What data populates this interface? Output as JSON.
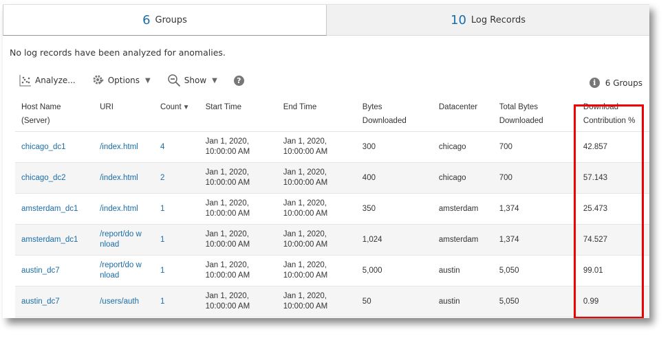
{
  "tabs": [
    {
      "count": "6",
      "label": "Groups",
      "active": true
    },
    {
      "count": "10",
      "label": "Log Records",
      "active": false
    }
  ],
  "message": "No log records have been analyzed for anomalies.",
  "toolbar": {
    "analyze": "Analyze...",
    "options": "Options",
    "show": "Show",
    "help_icon": "question-circle-icon"
  },
  "summary": "6 Groups",
  "columns": [
    [
      "Host Name",
      "(Server)"
    ],
    [
      "URI",
      ""
    ],
    [
      "Count",
      ""
    ],
    [
      "Start Time",
      ""
    ],
    [
      "End Time",
      ""
    ],
    [
      "Bytes",
      "Downloaded"
    ],
    [
      "Datacenter",
      ""
    ],
    [
      "Total Bytes",
      "Downloaded"
    ],
    [
      "Download",
      "Contribution %"
    ]
  ],
  "rows": [
    {
      "host": "chicago_dc1",
      "uri": "/index.html",
      "count": "4",
      "start": [
        "Jan 1, 2020,",
        "10:00:00 AM"
      ],
      "end": [
        "Jan 1, 2020,",
        "10:00:00 AM"
      ],
      "bytes": "300",
      "dc": "chicago",
      "total": "700",
      "pct": "42.857"
    },
    {
      "host": "chicago_dc2",
      "uri": "/index.html",
      "count": "2",
      "start": [
        "Jan 1, 2020,",
        "10:00:00 AM"
      ],
      "end": [
        "Jan 1, 2020,",
        "10:00:00 AM"
      ],
      "bytes": "400",
      "dc": "chicago",
      "total": "700",
      "pct": "57.143"
    },
    {
      "host": "amsterdam_dc1",
      "uri": "/index.html",
      "count": "1",
      "start": [
        "Jan 1, 2020,",
        "10:00:00 AM"
      ],
      "end": [
        "Jan 1, 2020,",
        "10:00:00 AM"
      ],
      "bytes": "350",
      "dc": "amsterdam",
      "total": "1,374",
      "pct": "25.473"
    },
    {
      "host": "amsterdam_dc1",
      "uri": "/report/do wnload",
      "count": "1",
      "start": [
        "Jan 1, 2020,",
        "10:00:00 AM"
      ],
      "end": [
        "Jan 1, 2020,",
        "10:00:00 AM"
      ],
      "bytes": "1,024",
      "dc": "amsterdam",
      "total": "1,374",
      "pct": "74.527"
    },
    {
      "host": "austin_dc7",
      "uri": "/report/do wnload",
      "count": "1",
      "start": [
        "Jan 1, 2020,",
        "10:00:00 AM"
      ],
      "end": [
        "Jan 1, 2020,",
        "10:00:00 AM"
      ],
      "bytes": "5,000",
      "dc": "austin",
      "total": "5,050",
      "pct": "99.01"
    },
    {
      "host": "austin_dc7",
      "uri": "/users/auth",
      "count": "1",
      "start": [
        "Jan 1, 2020,",
        "10:00:00 AM"
      ],
      "end": [
        "Jan 1, 2020,",
        "10:00:00 AM"
      ],
      "bytes": "50",
      "dc": "austin",
      "total": "5,050",
      "pct": "0.99"
    }
  ],
  "colors": {
    "link": "#1a6da8",
    "highlight": "#ee0000"
  }
}
